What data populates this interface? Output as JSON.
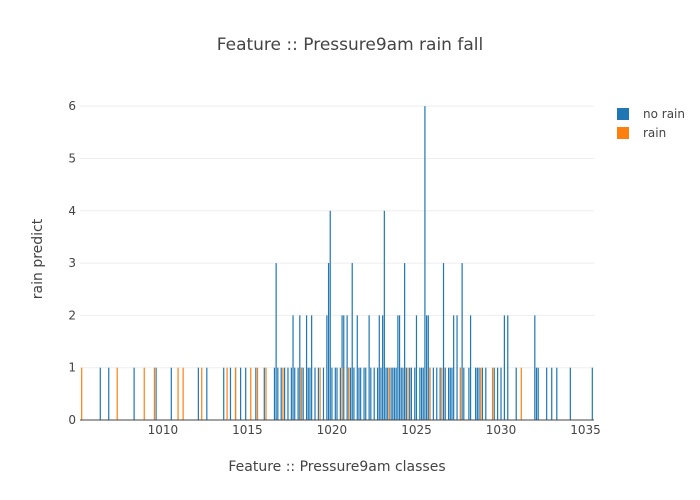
{
  "chart_data": {
    "type": "bar",
    "title": "Feature :: Pressure9am rain fall",
    "xlabel": "Feature :: Pressure9am classes",
    "ylabel": "rain predict",
    "xlim": [
      1005.1,
      1035.5
    ],
    "ylim": [
      0,
      6.5
    ],
    "x_ticks": [
      1010,
      1015,
      1020,
      1025,
      1030,
      1035
    ],
    "y_ticks": [
      0,
      1,
      2,
      3,
      4,
      5,
      6
    ],
    "grid": "y",
    "legend_position": "top-right",
    "colors": {
      "no_rain": "#1f77b4",
      "rain": "#ff7f0e"
    },
    "series": [
      {
        "name": "no rain",
        "x": [
          1006.3,
          1006.8,
          1008.3,
          1009.6,
          1010.5,
          1012.1,
          1012.6,
          1013.6,
          1014.0,
          1014.3,
          1014.6,
          1014.9,
          1015.5,
          1016.0,
          1016.6,
          1016.7,
          1016.8,
          1017.0,
          1017.2,
          1017.4,
          1017.6,
          1017.7,
          1017.8,
          1018.0,
          1018.1,
          1018.2,
          1018.3,
          1018.5,
          1018.6,
          1018.7,
          1018.8,
          1019.0,
          1019.2,
          1019.5,
          1019.7,
          1019.8,
          1019.9,
          1020.0,
          1020.2,
          1020.3,
          1020.5,
          1020.6,
          1020.7,
          1020.9,
          1021.0,
          1021.1,
          1021.2,
          1021.3,
          1021.5,
          1021.6,
          1021.7,
          1021.9,
          1022.0,
          1022.2,
          1022.3,
          1022.5,
          1022.7,
          1022.8,
          1022.9,
          1023.0,
          1023.1,
          1023.2,
          1023.3,
          1023.5,
          1023.6,
          1023.7,
          1023.8,
          1023.9,
          1024.0,
          1024.1,
          1024.2,
          1024.3,
          1024.4,
          1024.6,
          1024.7,
          1024.9,
          1025.0,
          1025.2,
          1025.3,
          1025.4,
          1025.5,
          1025.6,
          1025.7,
          1025.8,
          1026.0,
          1026.2,
          1026.4,
          1026.6,
          1026.7,
          1026.9,
          1027.0,
          1027.1,
          1027.2,
          1027.4,
          1027.6,
          1027.7,
          1027.8,
          1028.1,
          1028.2,
          1028.5,
          1028.6,
          1028.7,
          1028.9,
          1029.1,
          1029.6,
          1029.8,
          1030.0,
          1030.2,
          1030.4,
          1030.9,
          1032.0,
          1032.1,
          1032.2,
          1032.7,
          1033.0,
          1033.3,
          1034.1,
          1035.4
        ],
        "values": [
          1,
          1,
          1,
          1,
          1,
          1,
          1,
          1,
          1,
          1,
          1,
          1,
          1,
          1,
          1,
          3,
          1,
          1,
          1,
          1,
          1,
          2,
          1,
          1,
          2,
          1,
          1,
          2,
          1,
          1,
          2,
          1,
          1,
          1,
          2,
          3,
          4,
          1,
          1,
          1,
          1,
          2,
          2,
          2,
          1,
          1,
          3,
          1,
          2,
          1,
          1,
          1,
          1,
          2,
          1,
          1,
          1,
          2,
          1,
          2,
          4,
          1,
          1,
          1,
          1,
          1,
          1,
          2,
          2,
          1,
          1,
          3,
          1,
          1,
          1,
          1,
          2,
          1,
          1,
          1,
          6,
          2,
          2,
          1,
          1,
          1,
          1,
          3,
          1,
          1,
          1,
          1,
          2,
          2,
          1,
          3,
          1,
          1,
          2,
          1,
          1,
          1,
          1,
          1,
          1,
          1,
          1,
          2,
          2,
          1,
          2,
          1,
          1,
          1,
          1,
          1,
          1,
          1
        ]
      },
      {
        "name": "rain",
        "x": [
          1005.2,
          1007.3,
          1008.9,
          1009.5,
          1010.9,
          1011.2,
          1012.3,
          1013.8,
          1014.3,
          1015.2,
          1015.6,
          1016.1,
          1017.1,
          1018.2,
          1019.3,
          1020.6,
          1021.0,
          1023.4,
          1024.5,
          1025.8,
          1026.5,
          1027.6,
          1028.8,
          1029.5,
          1031.2
        ],
        "values": [
          1,
          1,
          1,
          1,
          1,
          1,
          1,
          1,
          1,
          1,
          1,
          1,
          1,
          1,
          1,
          1,
          1,
          1,
          1,
          1,
          1,
          1,
          1,
          1,
          1
        ]
      }
    ]
  }
}
